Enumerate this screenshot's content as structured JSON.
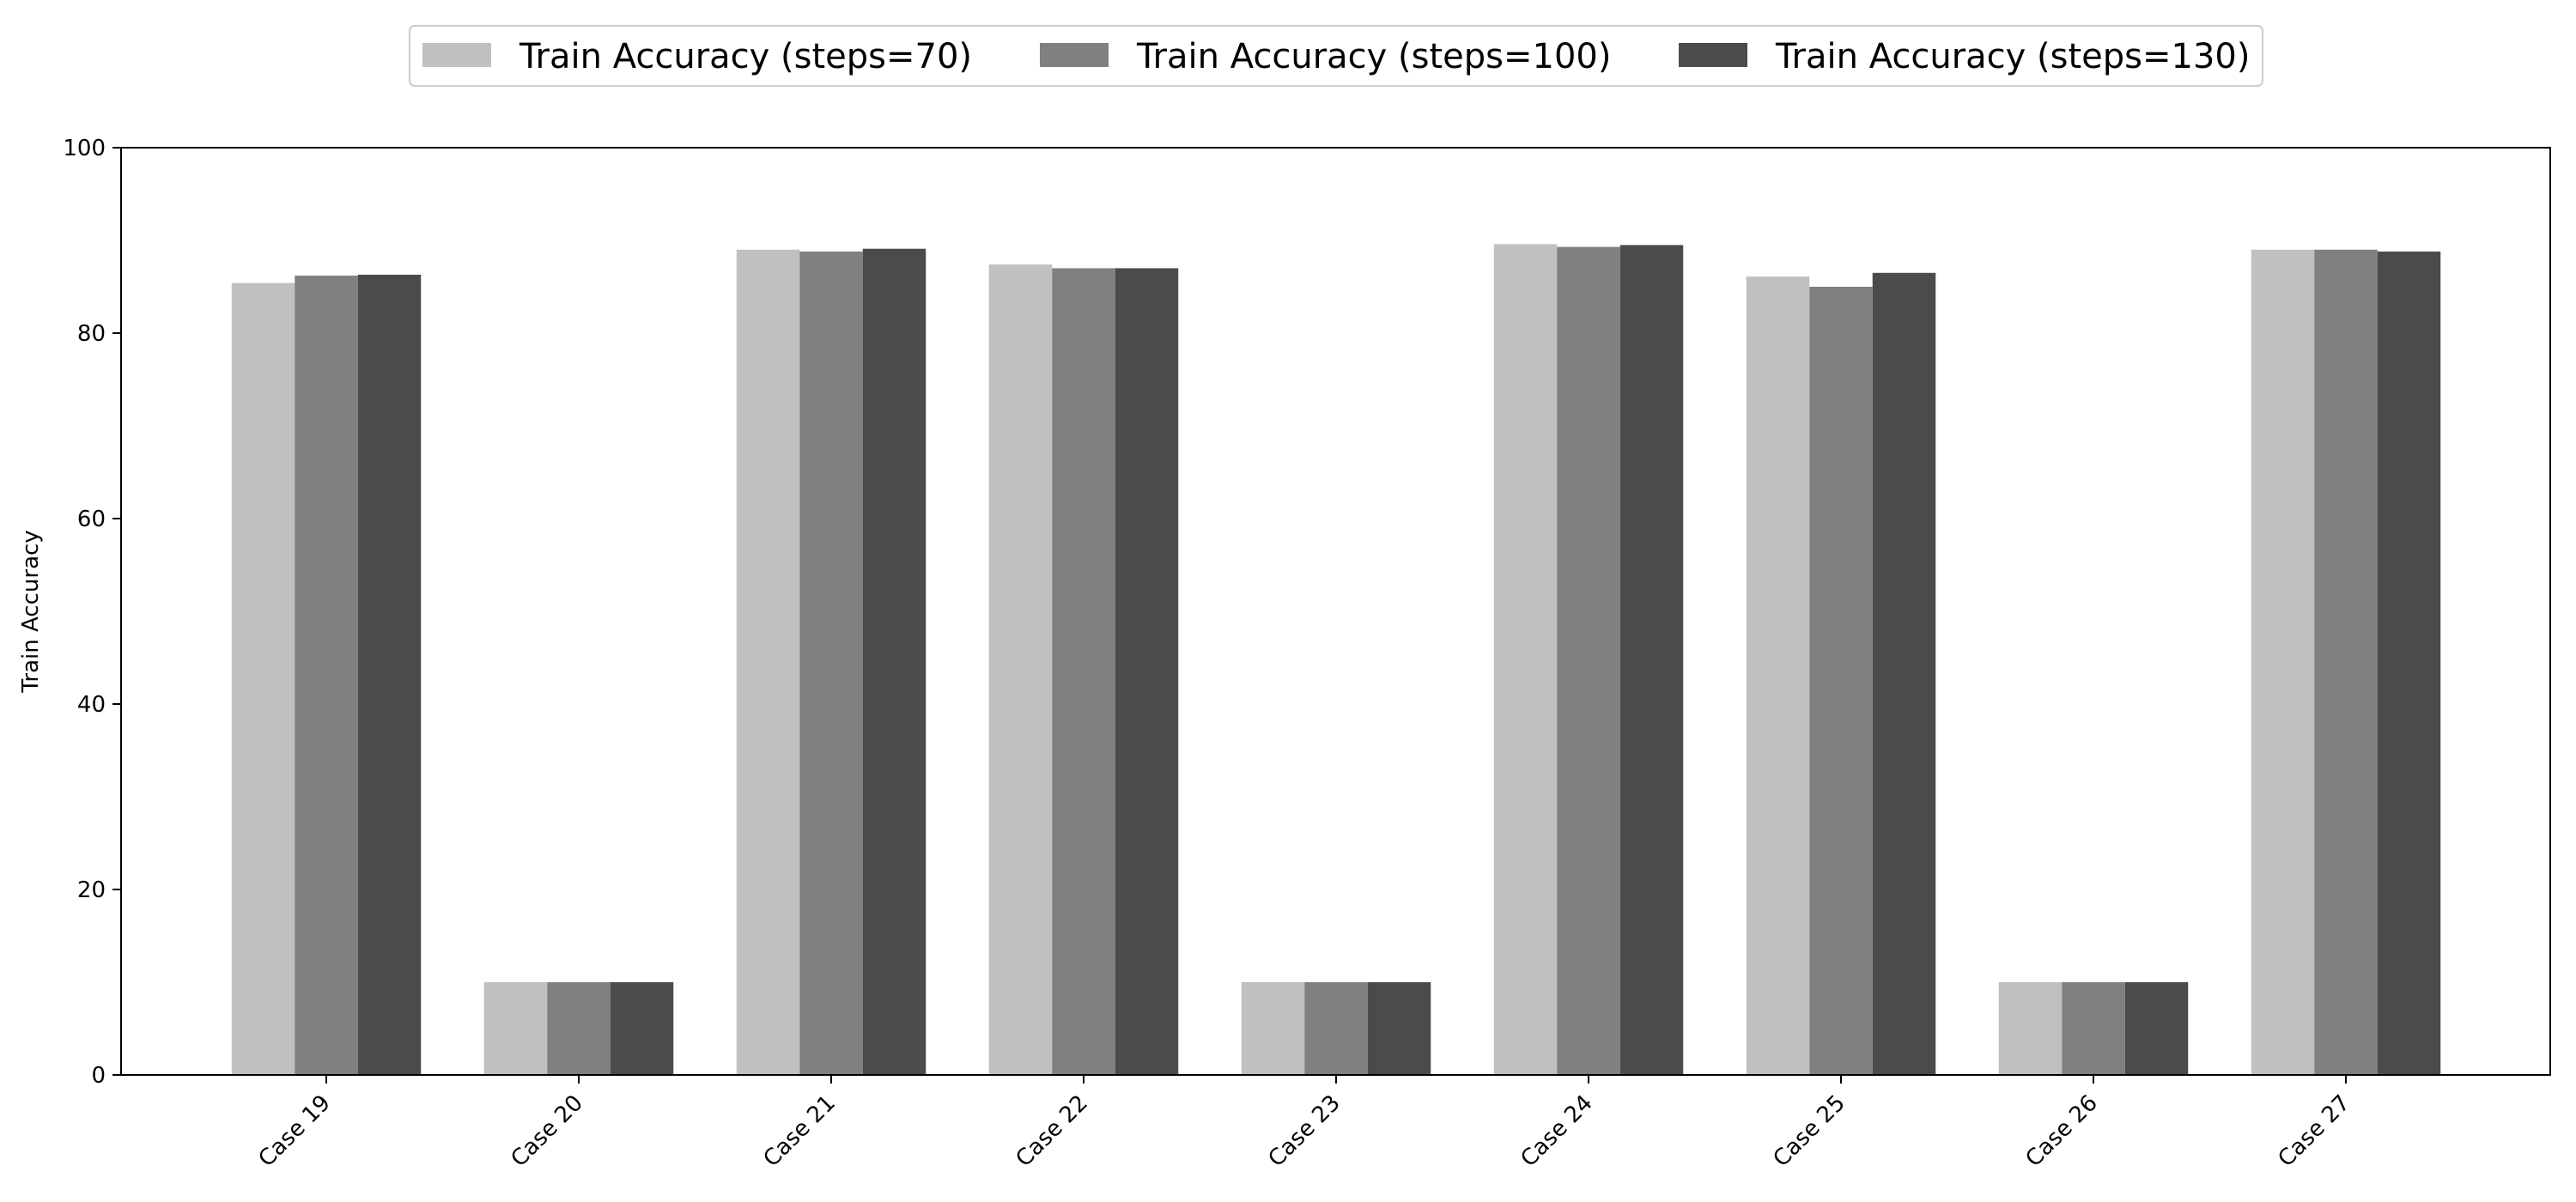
{
  "chart_data": {
    "type": "bar",
    "title": "",
    "xlabel": "",
    "ylabel": "Train Accuracy",
    "ylim": [
      0,
      100
    ],
    "yticks": [
      0,
      20,
      40,
      60,
      80,
      100
    ],
    "grid": false,
    "legend_position": "top-center",
    "categories": [
      "Case 19",
      "Case 20",
      "Case 21",
      "Case 22",
      "Case 23",
      "Case 24",
      "Case 25",
      "Case 26",
      "Case 27"
    ],
    "series": [
      {
        "name": "Train Accuracy (steps=70)",
        "color": "#c0c0c0",
        "values": [
          85.4,
          10.0,
          89.0,
          87.4,
          10.0,
          89.6,
          86.1,
          10.0,
          89.0
        ]
      },
      {
        "name": "Train Accuracy (steps=100)",
        "color": "#808080",
        "values": [
          86.2,
          10.0,
          88.8,
          87.0,
          10.0,
          89.3,
          85.0,
          10.0,
          89.0
        ]
      },
      {
        "name": "Train Accuracy (steps=130)",
        "color": "#4b4b4b",
        "values": [
          86.3,
          10.0,
          89.1,
          87.0,
          10.0,
          89.5,
          86.5,
          10.0,
          88.8
        ]
      }
    ]
  }
}
